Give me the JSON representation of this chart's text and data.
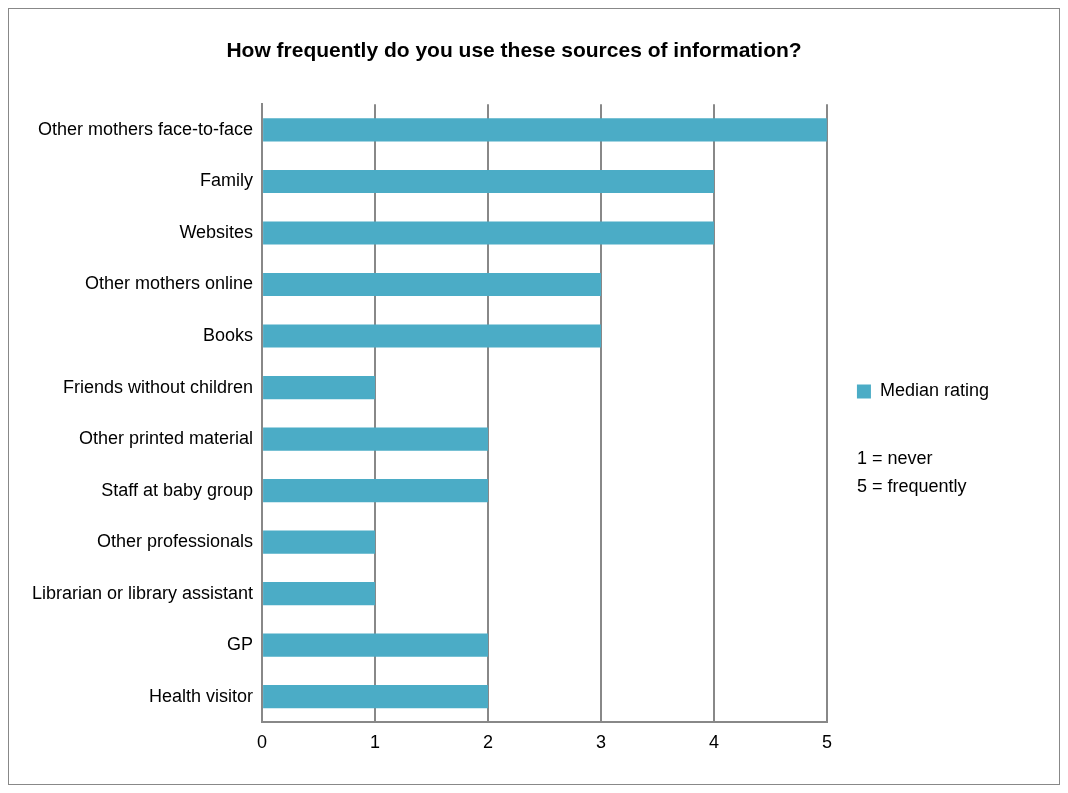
{
  "chart_data": {
    "type": "bar",
    "orientation": "horizontal",
    "title": "How frequently do you use these sources of information?",
    "categories": [
      "Other mothers face-to-face",
      "Family",
      "Websites",
      "Other mothers online",
      "Books",
      "Friends without children",
      "Other printed material",
      "Staff at baby group",
      "Other professionals",
      "Librarian or library assistant",
      "GP",
      "Health visitor"
    ],
    "series": [
      {
        "name": "Median rating",
        "color": "#4bacc6",
        "values": [
          5,
          4,
          4,
          3,
          3,
          1,
          2,
          2,
          1,
          1,
          2,
          2
        ]
      }
    ],
    "xlim": [
      0,
      5
    ],
    "xticks": [
      0,
      1,
      2,
      3,
      4,
      5
    ],
    "grid": "x",
    "legend": "right",
    "annotations": [
      "1 = never",
      "5 = frequently"
    ]
  }
}
